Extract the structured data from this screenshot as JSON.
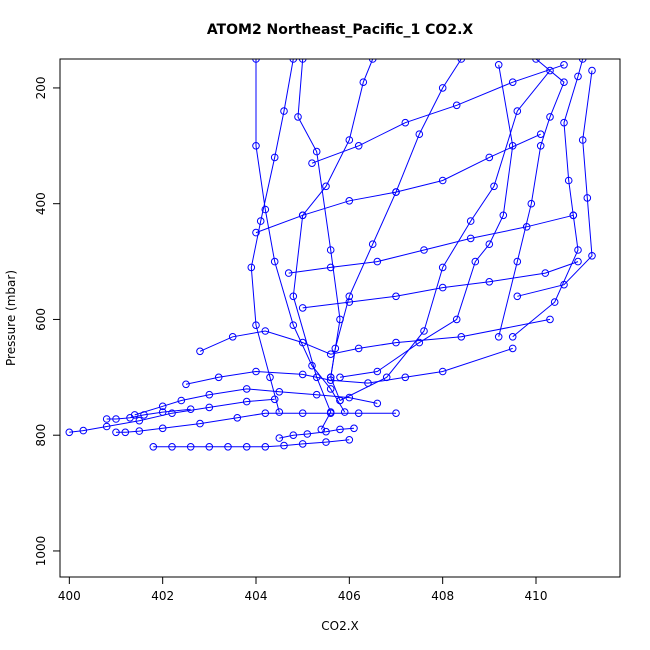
{
  "chart_data": {
    "type": "line",
    "title": "ATOM2 Northeast_Pacific_1 CO2.X",
    "xlabel": "CO2.X",
    "ylabel": "Pressure (mbar)",
    "xlim": [
      399.8,
      411.8
    ],
    "ylim": [
      1045,
      150
    ],
    "y_reversed": true,
    "xticks": [
      400,
      402,
      404,
      406,
      408,
      410
    ],
    "yticks": [
      200,
      400,
      600,
      800,
      1000
    ],
    "grid": false,
    "color": "#0000ff",
    "series": [
      {
        "points": [
          [
            410.0,
            150
          ],
          [
            410.6,
            190
          ],
          [
            410.3,
            250
          ],
          [
            410.1,
            300
          ],
          [
            409.9,
            400
          ],
          [
            409.6,
            500
          ],
          [
            409.2,
            630
          ]
        ]
      },
      {
        "points": [
          [
            411.2,
            170
          ],
          [
            411.0,
            290
          ],
          [
            411.1,
            390
          ],
          [
            411.2,
            490
          ],
          [
            410.6,
            540
          ],
          [
            409.6,
            560
          ]
        ]
      },
      {
        "points": [
          [
            411.0,
            150
          ],
          [
            410.9,
            180
          ],
          [
            410.6,
            260
          ],
          [
            410.7,
            360
          ],
          [
            410.8,
            420
          ],
          [
            410.9,
            480
          ],
          [
            410.4,
            570
          ],
          [
            409.5,
            630
          ]
        ]
      },
      {
        "points": [
          [
            408.4,
            150
          ],
          [
            408.0,
            200
          ],
          [
            407.5,
            280
          ],
          [
            407.0,
            380
          ],
          [
            406.5,
            470
          ],
          [
            406.0,
            560
          ],
          [
            405.7,
            650
          ],
          [
            405.6,
            700
          ]
        ]
      },
      {
        "points": [
          [
            410.3,
            170
          ],
          [
            409.6,
            240
          ],
          [
            409.1,
            370
          ],
          [
            408.6,
            430
          ],
          [
            408.0,
            510
          ],
          [
            407.6,
            620
          ],
          [
            406.8,
            700
          ],
          [
            405.8,
            740
          ]
        ]
      },
      {
        "points": [
          [
            409.2,
            160
          ],
          [
            409.5,
            300
          ],
          [
            409.3,
            420
          ],
          [
            409.0,
            470
          ],
          [
            408.7,
            500
          ],
          [
            408.3,
            600
          ],
          [
            407.5,
            640
          ],
          [
            406.6,
            690
          ],
          [
            405.8,
            700
          ]
        ]
      },
      {
        "points": [
          [
            406.5,
            150
          ],
          [
            406.3,
            190
          ],
          [
            406.0,
            290
          ],
          [
            405.5,
            370
          ],
          [
            405.0,
            420
          ],
          [
            404.8,
            560
          ],
          [
            405.3,
            700
          ],
          [
            405.6,
            760
          ],
          [
            405.4,
            790
          ]
        ]
      },
      {
        "points": [
          [
            405.0,
            150
          ],
          [
            404.9,
            250
          ],
          [
            405.3,
            310
          ],
          [
            405.6,
            480
          ],
          [
            405.8,
            600
          ],
          [
            405.6,
            700
          ],
          [
            405.8,
            740
          ]
        ]
      },
      {
        "points": [
          [
            404.0,
            150
          ],
          [
            404.0,
            300
          ],
          [
            404.2,
            410
          ],
          [
            404.4,
            500
          ],
          [
            404.8,
            610
          ],
          [
            405.2,
            680
          ],
          [
            405.6,
            720
          ],
          [
            405.9,
            760
          ]
        ]
      },
      {
        "points": [
          [
            404.8,
            150
          ],
          [
            404.6,
            240
          ],
          [
            404.4,
            320
          ],
          [
            404.1,
            430
          ],
          [
            403.9,
            510
          ],
          [
            404.0,
            610
          ],
          [
            404.3,
            700
          ],
          [
            404.5,
            760
          ]
        ]
      },
      {
        "points": [
          [
            402.8,
            655
          ],
          [
            403.5,
            630
          ],
          [
            404.2,
            620
          ],
          [
            405.0,
            640
          ],
          [
            405.6,
            660
          ],
          [
            406.2,
            650
          ],
          [
            407.0,
            640
          ],
          [
            408.4,
            630
          ],
          [
            410.3,
            600
          ]
        ]
      },
      {
        "points": [
          [
            402.5,
            712
          ],
          [
            403.2,
            700
          ],
          [
            404.0,
            690
          ],
          [
            405.0,
            695
          ],
          [
            405.6,
            705
          ],
          [
            406.4,
            710
          ],
          [
            407.2,
            700
          ],
          [
            408.0,
            690
          ],
          [
            409.5,
            650
          ]
        ]
      },
      {
        "points": [
          [
            401.4,
            765
          ],
          [
            402.0,
            750
          ],
          [
            402.4,
            740
          ],
          [
            403.0,
            730
          ],
          [
            403.8,
            720
          ],
          [
            404.5,
            725
          ],
          [
            405.3,
            730
          ],
          [
            406.0,
            735
          ],
          [
            406.6,
            745
          ]
        ]
      },
      {
        "points": [
          [
            400.0,
            795
          ],
          [
            400.3,
            792
          ],
          [
            400.8,
            785
          ],
          [
            401.5,
            775
          ],
          [
            402.2,
            762
          ],
          [
            403.0,
            752
          ],
          [
            403.8,
            742
          ],
          [
            404.4,
            738
          ]
        ]
      },
      {
        "points": [
          [
            400.8,
            772
          ],
          [
            401.0,
            772
          ],
          [
            401.3,
            770
          ],
          [
            401.6,
            765
          ],
          [
            402.0,
            760
          ],
          [
            402.6,
            755
          ]
        ]
      },
      {
        "points": [
          [
            401.0,
            795
          ],
          [
            401.2,
            795
          ],
          [
            401.5,
            793
          ],
          [
            402.0,
            788
          ],
          [
            402.8,
            780
          ],
          [
            403.6,
            770
          ],
          [
            404.2,
            762
          ],
          [
            405.0,
            762
          ],
          [
            405.6,
            762
          ],
          [
            406.2,
            762
          ],
          [
            407.0,
            762
          ]
        ]
      },
      {
        "points": [
          [
            404.5,
            805
          ],
          [
            404.8,
            800
          ],
          [
            405.1,
            798
          ],
          [
            405.5,
            794
          ],
          [
            405.8,
            790
          ],
          [
            406.1,
            788
          ]
        ]
      },
      {
        "points": [
          [
            401.8,
            820
          ],
          [
            402.2,
            820
          ],
          [
            402.6,
            820
          ],
          [
            403.0,
            820
          ],
          [
            403.4,
            820
          ],
          [
            403.8,
            820
          ],
          [
            404.2,
            820
          ],
          [
            404.6,
            818
          ],
          [
            405.0,
            815
          ],
          [
            405.5,
            812
          ],
          [
            406.0,
            808
          ]
        ]
      },
      {
        "points": [
          [
            405.2,
            330
          ],
          [
            406.2,
            300
          ],
          [
            407.2,
            260
          ],
          [
            408.3,
            230
          ],
          [
            409.5,
            190
          ],
          [
            410.6,
            160
          ]
        ]
      },
      {
        "points": [
          [
            404.0,
            450
          ],
          [
            405.0,
            420
          ],
          [
            406.0,
            395
          ],
          [
            407.0,
            380
          ],
          [
            408.0,
            360
          ],
          [
            409.0,
            320
          ],
          [
            410.1,
            280
          ]
        ]
      },
      {
        "points": [
          [
            404.7,
            520
          ],
          [
            405.6,
            510
          ],
          [
            406.6,
            500
          ],
          [
            407.6,
            480
          ],
          [
            408.6,
            460
          ],
          [
            409.8,
            440
          ],
          [
            410.8,
            420
          ]
        ]
      },
      {
        "points": [
          [
            405.0,
            580
          ],
          [
            406.0,
            570
          ],
          [
            407.0,
            560
          ],
          [
            408.0,
            545
          ],
          [
            409.0,
            535
          ],
          [
            410.2,
            520
          ],
          [
            410.9,
            500
          ]
        ]
      }
    ]
  }
}
